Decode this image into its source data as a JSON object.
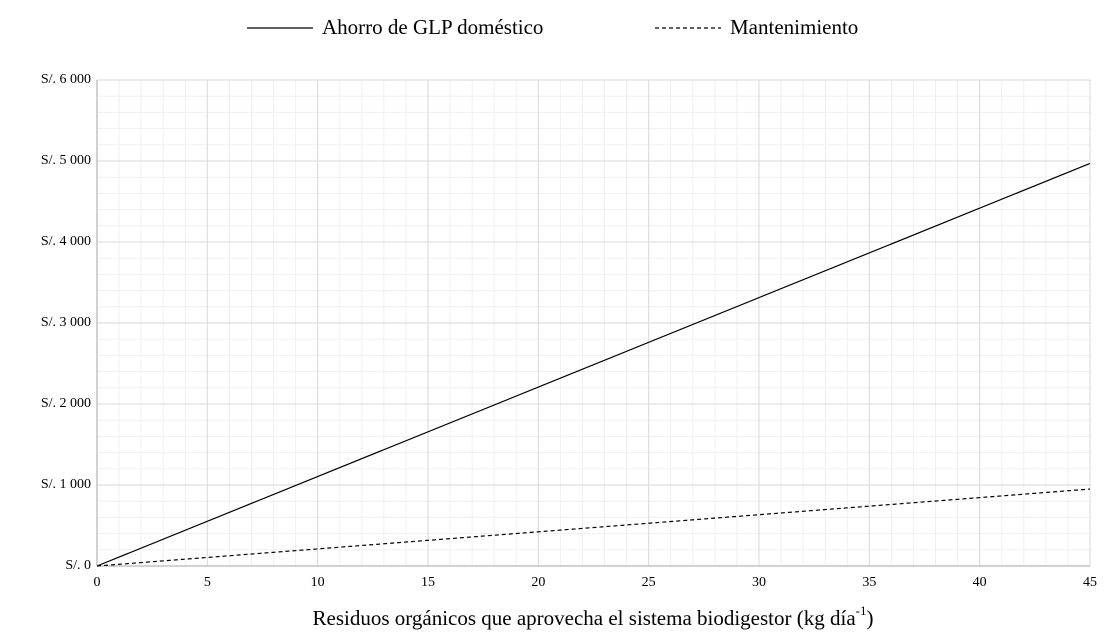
{
  "chart_data": {
    "type": "line",
    "x_label": [
      "Residuos orgánicos que aprovecha el sistema biodigestor (kg día",
      "-1",
      ")"
    ],
    "x": [
      0,
      45
    ],
    "series": [
      {
        "name": "Ahorro de GLP doméstico",
        "color": "#000000",
        "style": "solid",
        "values": [
          0,
          4970
        ]
      },
      {
        "name": "Mantenimiento",
        "color": "#000000",
        "style": "dashed",
        "values": [
          0,
          950
        ]
      }
    ],
    "xlim": [
      0,
      45
    ],
    "xticks": [
      0,
      5,
      10,
      15,
      20,
      25,
      30,
      35,
      40,
      45
    ],
    "ylim": [
      0,
      6000
    ],
    "yticks": [
      {
        "value": 0,
        "label": "S/.  0"
      },
      {
        "value": 1000,
        "label": "S/. 1 000"
      },
      {
        "value": 2000,
        "label": "S/. 2 000"
      },
      {
        "value": 3000,
        "label": "S/. 3 000"
      },
      {
        "value": 4000,
        "label": "S/. 4 000"
      },
      {
        "value": 5000,
        "label": "S/. 5 000"
      },
      {
        "value": 6000,
        "label": "S/. 6 000"
      }
    ],
    "grid": true,
    "minor_grid": true,
    "legend": "top"
  }
}
